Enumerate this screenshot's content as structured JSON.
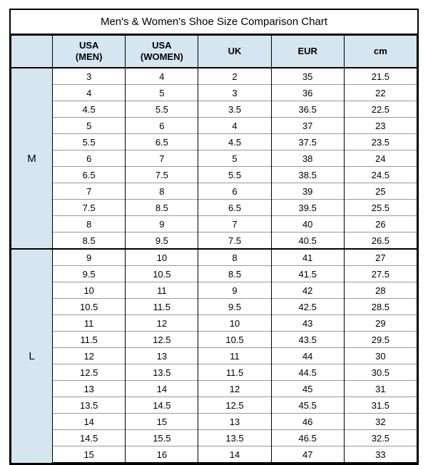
{
  "title": "Men's & Women's Shoe Size Comparison Chart",
  "columns": [
    {
      "label": "",
      "width_class": "col-label"
    },
    {
      "label": "USA (MEN)",
      "width_class": "col-data"
    },
    {
      "label": "USA (WOMEN)",
      "width_class": "col-data"
    },
    {
      "label": "UK",
      "width_class": "col-data"
    },
    {
      "label": "EUR",
      "width_class": "col-data"
    },
    {
      "label": "cm",
      "width_class": "col-data"
    }
  ],
  "groups": [
    {
      "label": "M",
      "rows": [
        [
          "3",
          "4",
          "2",
          "35",
          "21.5"
        ],
        [
          "4",
          "5",
          "3",
          "36",
          "22"
        ],
        [
          "4.5",
          "5.5",
          "3.5",
          "36.5",
          "22.5"
        ],
        [
          "5",
          "6",
          "4",
          "37",
          "23"
        ],
        [
          "5.5",
          "6.5",
          "4.5",
          "37.5",
          "23.5"
        ],
        [
          "6",
          "7",
          "5",
          "38",
          "24"
        ],
        [
          "6.5",
          "7.5",
          "5.5",
          "38.5",
          "24.5"
        ],
        [
          "7",
          "8",
          "6",
          "39",
          "25"
        ],
        [
          "7.5",
          "8.5",
          "6.5",
          "39.5",
          "25.5"
        ],
        [
          "8",
          "9",
          "7",
          "40",
          "26"
        ],
        [
          "8.5",
          "9.5",
          "7.5",
          "40.5",
          "26.5"
        ]
      ]
    },
    {
      "label": "L",
      "rows": [
        [
          "9",
          "10",
          "8",
          "41",
          "27"
        ],
        [
          "9.5",
          "10.5",
          "8.5",
          "41.5",
          "27.5"
        ],
        [
          "10",
          "11",
          "9",
          "42",
          "28"
        ],
        [
          "10.5",
          "11.5",
          "9.5",
          "42.5",
          "28.5"
        ],
        [
          "11",
          "12",
          "10",
          "43",
          "29"
        ],
        [
          "11.5",
          "12.5",
          "10.5",
          "43.5",
          "29.5"
        ],
        [
          "12",
          "13",
          "11",
          "44",
          "30"
        ],
        [
          "12.5",
          "13.5",
          "11.5",
          "44.5",
          "30.5"
        ],
        [
          "13",
          "14",
          "12",
          "45",
          "31"
        ],
        [
          "13.5",
          "14.5",
          "12.5",
          "45.5",
          "31.5"
        ],
        [
          "14",
          "15",
          "13",
          "46",
          "32"
        ],
        [
          "14.5",
          "15.5",
          "13.5",
          "46.5",
          "32.5"
        ],
        [
          "15",
          "16",
          "14",
          "47",
          "33"
        ]
      ]
    }
  ],
  "colors": {
    "header_bg": "#d6e6f0",
    "border": "#000000",
    "inner_border": "#999999",
    "background": "#ffffff"
  }
}
